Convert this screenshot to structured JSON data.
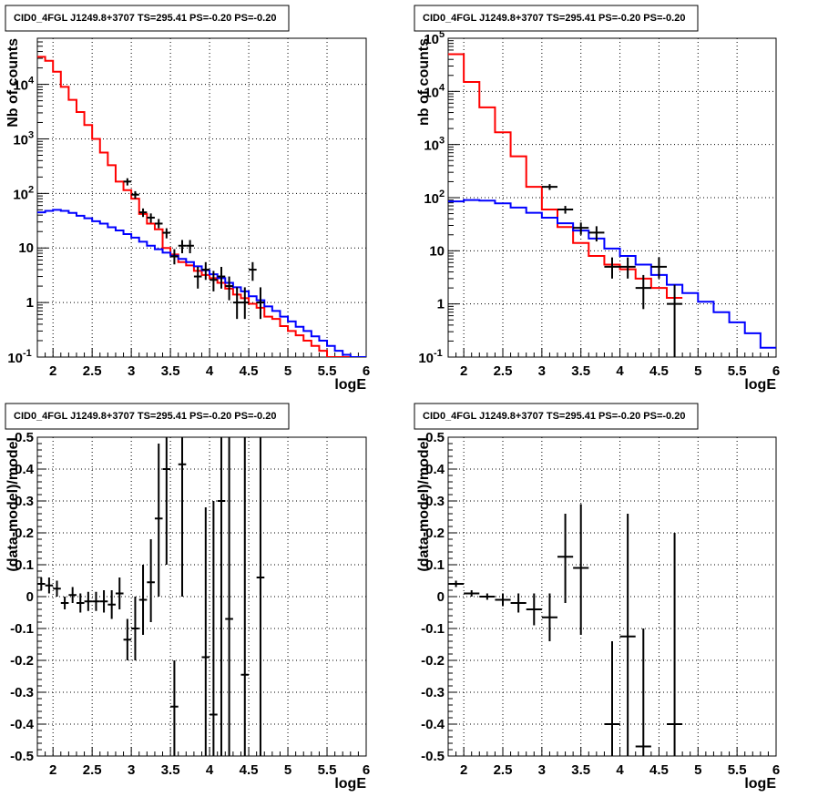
{
  "chart_data": [
    {
      "type": "line",
      "title": "CID0_4FGL J1249.8+3707 TS=295.41 PS=-0.20 PS=-0.20",
      "xlabel": "logE",
      "ylabel": "Nb of counts",
      "xlim": [
        1.8,
        6.0
      ],
      "ylim": [
        0.1,
        70000
      ],
      "yscale": "log",
      "x_ticks": [
        "2",
        "2.5",
        "3",
        "3.5",
        "4",
        "4.5",
        "5",
        "5.5",
        "6"
      ],
      "y_ticks": [
        "10^-1",
        "1",
        "10",
        "10^2",
        "10^3",
        "10^4"
      ],
      "grid": true,
      "series": [
        {
          "color": "#ff0000",
          "bin_width": 0.1,
          "x": [
            1.85,
            1.95,
            2.05,
            2.15,
            2.25,
            2.35,
            2.45,
            2.55,
            2.65,
            2.75,
            2.85,
            2.95,
            3.05,
            3.15,
            3.25,
            3.35,
            3.45,
            3.55,
            3.65,
            3.75,
            3.85,
            3.95,
            4.05,
            4.15,
            4.25,
            4.35,
            4.45,
            4.55,
            4.65,
            4.75,
            4.85,
            4.95,
            5.05,
            5.15,
            5.25,
            5.35,
            5.45,
            5.55,
            5.65,
            5.75,
            5.85,
            5.95
          ],
          "y": [
            32000,
            27000,
            17000,
            9000,
            5200,
            3100,
            1800,
            1000,
            560,
            330,
            165,
            115,
            80,
            42,
            28,
            22,
            10,
            7.6,
            5.5,
            4.8,
            3.8,
            3.2,
            2.8,
            2.3,
            1.8,
            1.4,
            1.2,
            0.95,
            0.8,
            0.55,
            0.5,
            0.37,
            0.3,
            0.25,
            0.2,
            0.16,
            0.13,
            0.1,
            0.1,
            0.1,
            0.1,
            0.1
          ]
        },
        {
          "color": "#0000ff",
          "bin_width": 0.1,
          "x": [
            1.85,
            1.95,
            2.05,
            2.15,
            2.25,
            2.35,
            2.45,
            2.55,
            2.65,
            2.75,
            2.85,
            2.95,
            3.05,
            3.15,
            3.25,
            3.35,
            3.45,
            3.55,
            3.65,
            3.75,
            3.85,
            3.95,
            4.05,
            4.15,
            4.25,
            4.35,
            4.45,
            4.55,
            4.65,
            4.75,
            4.85,
            4.95,
            5.05,
            5.15,
            5.25,
            5.35,
            5.45,
            5.55,
            5.65,
            5.75,
            5.85,
            5.95
          ],
          "y": [
            45,
            48,
            50,
            48,
            44,
            39,
            35,
            31,
            28,
            24,
            21,
            18,
            15.5,
            13,
            11,
            9.5,
            8.2,
            7.2,
            6.3,
            5.5,
            4.6,
            3.9,
            3.3,
            2.8,
            2.3,
            1.9,
            1.6,
            1.3,
            1.1,
            0.85,
            0.7,
            0.55,
            0.45,
            0.36,
            0.3,
            0.24,
            0.2,
            0.16,
            0.13,
            0.11,
            0.1,
            0.1
          ]
        },
        {
          "color": "#000000",
          "points": true,
          "xerr": 0.05,
          "x": [
            2.95,
            3.05,
            3.15,
            3.25,
            3.35,
            3.45,
            3.55,
            3.65,
            3.75,
            3.85,
            3.95,
            4.05,
            4.15,
            4.25,
            4.35,
            4.45,
            4.55,
            4.65
          ],
          "y": [
            165,
            95,
            45,
            36,
            28,
            19,
            7,
            11,
            11,
            3,
            4,
            2.6,
            3,
            2,
            1,
            1,
            4,
            1
          ],
          "ylow": [
            140,
            80,
            37,
            29,
            23,
            15,
            5,
            8,
            8,
            1.8,
            2.6,
            1.6,
            1.8,
            1.1,
            0.5,
            0.5,
            2.5,
            0.5
          ],
          "yhigh": [
            190,
            110,
            53,
            43,
            34,
            23,
            9.5,
            14,
            14,
            4.5,
            5.5,
            3.8,
            4.5,
            3,
            1.9,
            1.9,
            5.5,
            1.9
          ]
        }
      ]
    },
    {
      "type": "line",
      "title": "CID0_4FGL J1249.8+3707 TS=295.41 PS=-0.20 PS=-0.20",
      "xlabel": "logE",
      "ylabel": "nb of counts",
      "xlim": [
        1.8,
        6.0
      ],
      "ylim": [
        0.1,
        100000
      ],
      "yscale": "log",
      "x_ticks": [
        "2",
        "2.5",
        "3",
        "3.5",
        "4",
        "4.5",
        "5",
        "5.5",
        "6"
      ],
      "y_ticks": [
        "10^-1",
        "1",
        "10",
        "10^2",
        "10^3",
        "10^4",
        "10^5"
      ],
      "grid": true,
      "series": [
        {
          "color": "#ff0000",
          "bin_width": 0.2,
          "x": [
            1.9,
            2.1,
            2.3,
            2.5,
            2.7,
            2.9,
            3.1,
            3.3,
            3.5,
            3.7,
            3.9,
            4.1,
            4.3,
            4.5,
            4.7
          ],
          "y": [
            50000,
            15000,
            5000,
            1700,
            600,
            160,
            60,
            28,
            14,
            8,
            5.5,
            4.5,
            3,
            2,
            1.3
          ]
        },
        {
          "color": "#0000ff",
          "bin_width": 0.2,
          "x": [
            1.9,
            2.1,
            2.3,
            2.5,
            2.7,
            2.9,
            3.1,
            3.3,
            3.5,
            3.7,
            3.9,
            4.1,
            4.3,
            4.5,
            4.7,
            4.9,
            5.1,
            5.3,
            5.5,
            5.7,
            5.9
          ],
          "y": [
            85,
            90,
            88,
            78,
            65,
            52,
            42,
            33,
            24,
            17,
            11,
            8,
            5.5,
            3.5,
            2.3,
            1.6,
            1.1,
            0.7,
            0.45,
            0.28,
            0.15
          ]
        },
        {
          "color": "#000000",
          "points": true,
          "xerr": 0.1,
          "x": [
            3.1,
            3.3,
            3.5,
            3.7,
            3.9,
            4.1,
            4.3,
            4.5,
            4.7
          ],
          "y": [
            160,
            60,
            27,
            22,
            5,
            5,
            2,
            5,
            1
          ],
          "ylow": [
            140,
            50,
            20,
            15,
            3,
            3,
            0.8,
            3,
            0.1
          ],
          "yhigh": [
            180,
            70,
            34,
            29,
            7.5,
            7.5,
            3.5,
            7.5,
            2.3
          ]
        }
      ]
    },
    {
      "type": "scatter",
      "title": "CID0_4FGL J1249.8+3707 TS=295.41 PS=-0.20 PS=-0.20",
      "xlabel": "logE",
      "ylabel": "(data-model)/model",
      "xlim": [
        1.8,
        6.0
      ],
      "ylim": [
        -0.5,
        0.5
      ],
      "x_ticks": [
        "2",
        "2.5",
        "3",
        "3.5",
        "4",
        "4.5",
        "5",
        "5.5",
        "6"
      ],
      "y_ticks": [
        "-0.5",
        "-0.4",
        "-0.3",
        "-0.2",
        "-0.1",
        "0",
        "0.1",
        "0.2",
        "0.3",
        "0.4",
        "0.5"
      ],
      "grid": true,
      "series": [
        {
          "color": "#000000",
          "xerr": 0.05,
          "x": [
            1.85,
            1.95,
            2.05,
            2.15,
            2.25,
            2.35,
            2.45,
            2.55,
            2.65,
            2.75,
            2.85,
            2.95,
            3.05,
            3.15,
            3.25,
            3.35,
            3.45,
            3.55,
            3.65,
            3.95,
            4.05,
            4.15,
            4.25,
            4.45,
            4.65
          ],
          "y": [
            0.04,
            0.035,
            0.025,
            -0.02,
            0.005,
            -0.02,
            -0.015,
            -0.015,
            -0.015,
            -0.025,
            0.01,
            -0.135,
            -0.1,
            -0.01,
            0.045,
            0.245,
            0.4,
            -0.345,
            0.415,
            -0.19,
            -0.37,
            0.3,
            -0.07,
            -0.245,
            0.06
          ],
          "ylow": [
            0.02,
            0.01,
            0.0,
            -0.04,
            -0.02,
            -0.05,
            -0.045,
            -0.045,
            -0.05,
            -0.07,
            -0.04,
            -0.2,
            -0.2,
            -0.12,
            -0.08,
            0.0,
            0.1,
            -0.5,
            0.0,
            -0.5,
            -0.5,
            -0.5,
            -0.5,
            -0.5,
            -0.5
          ],
          "yhigh": [
            0.06,
            0.06,
            0.05,
            0.0,
            0.03,
            0.01,
            0.015,
            0.015,
            0.02,
            0.02,
            0.06,
            -0.07,
            0.0,
            0.1,
            0.18,
            0.48,
            0.5,
            -0.2,
            0.5,
            0.28,
            0.3,
            0.5,
            0.5,
            0.5,
            0.5
          ]
        }
      ]
    },
    {
      "type": "scatter",
      "title": "CID0_4FGL J1249.8+3707 TS=295.41 PS=-0.20 PS=-0.20",
      "xlabel": "logE",
      "ylabel": "(data-model)/model",
      "xlim": [
        1.8,
        6.0
      ],
      "ylim": [
        -0.5,
        0.5
      ],
      "x_ticks": [
        "2",
        "2.5",
        "3",
        "3.5",
        "4",
        "4.5",
        "5",
        "5.5",
        "6"
      ],
      "y_ticks": [
        "-0.5",
        "-0.4",
        "-0.3",
        "-0.2",
        "-0.1",
        "0",
        "0.1",
        "0.2",
        "0.3",
        "0.4",
        "0.5"
      ],
      "grid": true,
      "series": [
        {
          "color": "#000000",
          "xerr": 0.1,
          "x": [
            1.9,
            2.1,
            2.3,
            2.5,
            2.7,
            2.9,
            3.1,
            3.3,
            3.5,
            3.9,
            4.1,
            4.3,
            4.7
          ],
          "y": [
            0.04,
            0.01,
            0.0,
            -0.01,
            -0.02,
            -0.04,
            -0.065,
            0.125,
            0.09,
            -0.4,
            -0.125,
            -0.47,
            -0.4
          ],
          "ylow": [
            0.03,
            0.0,
            -0.01,
            -0.03,
            -0.05,
            -0.09,
            -0.14,
            -0.02,
            -0.12,
            -0.5,
            -0.5,
            -0.5,
            -0.5
          ],
          "yhigh": [
            0.05,
            0.02,
            0.01,
            0.01,
            0.01,
            0.01,
            0.01,
            0.26,
            0.29,
            -0.14,
            0.26,
            -0.1,
            0.2
          ]
        }
      ]
    }
  ]
}
